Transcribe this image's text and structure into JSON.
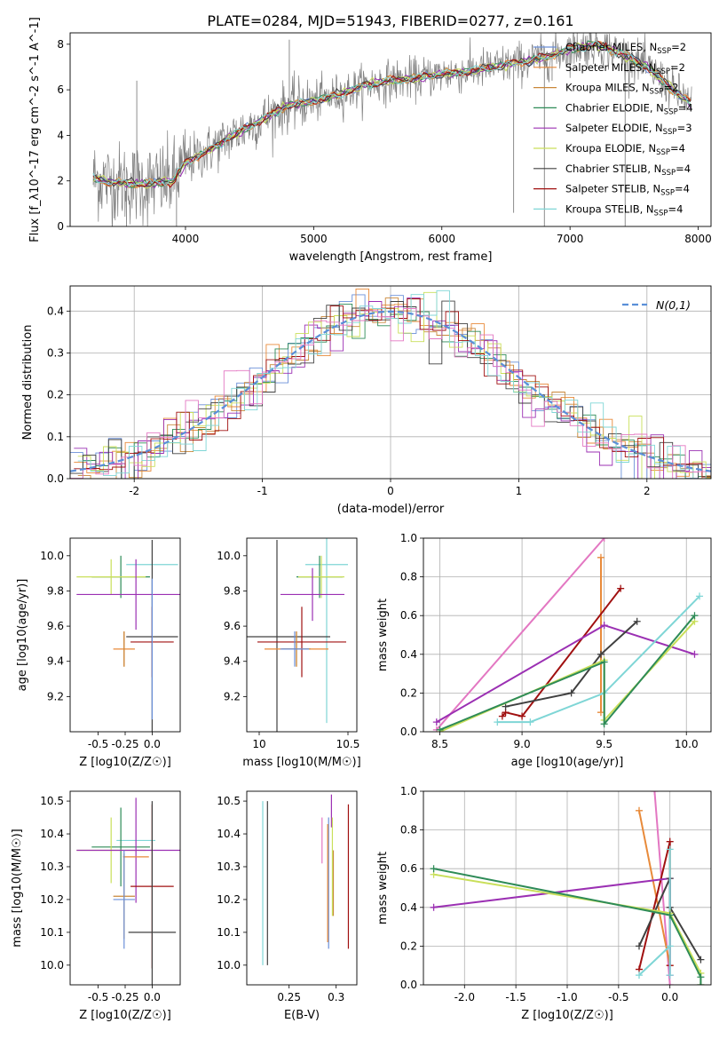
{
  "title": "PLATE=0284, MJD=51943, FIBERID=0277, z=0.161",
  "colors": {
    "cm": "#6a8fd8",
    "sm": "#e88a3a",
    "km": "#c9883a",
    "ce": "#2e8b57",
    "se": "#9b30b3",
    "ke": "#c9df5a",
    "cs": "#404040",
    "ss": "#a01010",
    "ks": "#7fd6d6",
    "pink": "#e377c2",
    "data": "#808080",
    "normal": "#5a8fd8"
  },
  "chart_data": [
    {
      "id": "spectrum",
      "type": "line",
      "xlabel": "wavelength [Angstrom, rest frame]",
      "ylabel": "Flux [f_λ10^-17 erg cm^-2 s^-1 A^-1]",
      "xlim": [
        3100,
        8100
      ],
      "ylim": [
        0,
        8.5
      ],
      "xticks": [
        4000,
        5000,
        6000,
        7000,
        8000
      ],
      "yticks": [
        0,
        2,
        4,
        6,
        8
      ],
      "continuum": {
        "x": [
          3280,
          3500,
          3700,
          3900,
          4000,
          4200,
          4400,
          4600,
          4800,
          5000,
          5200,
          5400,
          5600,
          5800,
          6000,
          6200,
          6400,
          6600,
          6800,
          7000,
          7200,
          7400,
          7600,
          7800,
          7950
        ],
        "y": [
          2.1,
          1.9,
          1.85,
          2.0,
          2.8,
          3.4,
          4.1,
          4.7,
          5.3,
          5.5,
          5.8,
          6.2,
          6.4,
          6.5,
          6.7,
          6.8,
          7.0,
          7.2,
          7.4,
          7.8,
          8.0,
          7.6,
          7.0,
          6.0,
          5.4
        ]
      },
      "legend": [
        {
          "key": "cm",
          "label": "Chabrier MILES, N",
          "sub": "SSP",
          "tail": "=2"
        },
        {
          "key": "sm",
          "label": "Salpeter MILES, N",
          "sub": "SSP",
          "tail": "=2"
        },
        {
          "key": "km",
          "label": "Kroupa MILES, N",
          "sub": "SSP",
          "tail": "=2"
        },
        {
          "key": "ce",
          "label": "Chabrier ELODIE, N",
          "sub": "SSP",
          "tail": "=4"
        },
        {
          "key": "se",
          "label": "Salpeter ELODIE, N",
          "sub": "SSP",
          "tail": "=3"
        },
        {
          "key": "ke",
          "label": "Kroupa ELODIE, N",
          "sub": "SSP",
          "tail": "=4"
        },
        {
          "key": "cs",
          "label": "Chabrier STELIB, N",
          "sub": "SSP",
          "tail": "=4"
        },
        {
          "key": "ss",
          "label": "Salpeter STELIB, N",
          "sub": "SSP",
          "tail": "=4"
        },
        {
          "key": "ks",
          "label": "Kroupa STELIB, N",
          "sub": "SSP",
          "tail": "=4"
        }
      ]
    },
    {
      "id": "residuals",
      "type": "histogram",
      "xlabel": "(data-model)/error",
      "ylabel": "Normed distribution",
      "xlim": [
        -2.5,
        2.5
      ],
      "ylim": [
        0,
        0.46
      ],
      "xticks": [
        -2,
        -1,
        0,
        1,
        2
      ],
      "yticks": [
        0.0,
        0.1,
        0.2,
        0.3,
        0.4
      ],
      "grid": true,
      "legend": "N(0,1)",
      "legend_position": "top-right",
      "bin_width": 0.1
    },
    {
      "id": "age-vs-z",
      "type": "errorbar",
      "xlabel": "Z [log10(Z/Z☉)]",
      "ylabel": "age  [log10(age/yr)]",
      "xlim": [
        -0.76,
        0.26
      ],
      "ylim": [
        9.0,
        10.1
      ],
      "xticks": [
        -0.5,
        -0.25,
        0.0
      ],
      "yticks": [
        9.2,
        9.4,
        9.6,
        9.8,
        10.0
      ],
      "points": [
        {
          "key": "ks",
          "x": 0.0,
          "y": 9.95,
          "xerr": 0.24,
          "yerr": 0.0
        },
        {
          "key": "ce",
          "x": -0.29,
          "y": 9.88,
          "xerr": 0.27,
          "yerr": 0.12
        },
        {
          "key": "ke",
          "x": -0.38,
          "y": 9.88,
          "xerr": 0.32,
          "yerr": 0.1
        },
        {
          "key": "se",
          "x": -0.15,
          "y": 9.78,
          "xerr": 0.55,
          "yerr": 0.2
        },
        {
          "key": "cs",
          "x": 0.0,
          "y": 9.54,
          "xerr": 0.24,
          "yerr": 0.55
        },
        {
          "key": "ss",
          "x": 0.0,
          "y": 9.51,
          "xerr": 0.2,
          "yerr": 0.2
        },
        {
          "key": "sm",
          "x": -0.26,
          "y": 9.47,
          "xerr": 0.1,
          "yerr": 0.1
        },
        {
          "key": "km",
          "x": -0.26,
          "y": 9.47,
          "xerr": 0.0,
          "yerr": 0.1
        },
        {
          "key": "cm",
          "x": 0.0,
          "y": 9.47,
          "xerr": 0.0,
          "yerr": 0.4
        }
      ]
    },
    {
      "id": "age-vs-mass",
      "type": "errorbar",
      "xlabel": "mass [log10(M/M☉)]",
      "ylabel": "",
      "xlim": [
        9.93,
        10.55
      ],
      "ylim": [
        9.0,
        10.1
      ],
      "xticks": [
        10.0,
        10.5
      ],
      "yticks": [
        9.2,
        9.4,
        9.6,
        9.8,
        10.0
      ],
      "points": [
        {
          "key": "ks",
          "x": 10.38,
          "y": 9.95,
          "xerr": 0.12,
          "yerr": 0.9
        },
        {
          "key": "ce",
          "x": 10.34,
          "y": 9.88,
          "xerr": 0.13,
          "yerr": 0.12
        },
        {
          "key": "ke",
          "x": 10.35,
          "y": 9.88,
          "xerr": 0.13,
          "yerr": 0.12
        },
        {
          "key": "se",
          "x": 10.3,
          "y": 9.78,
          "xerr": 0.18,
          "yerr": 0.15
        },
        {
          "key": "cs",
          "x": 10.1,
          "y": 9.54,
          "xerr": 0.3,
          "yerr": 0.55
        },
        {
          "key": "ss",
          "x": 10.24,
          "y": 9.51,
          "xerr": 0.25,
          "yerr": 0.2
        },
        {
          "key": "sm",
          "x": 10.21,
          "y": 9.47,
          "xerr": 0.18,
          "yerr": 0.1
        },
        {
          "key": "km",
          "x": 10.21,
          "y": 9.47,
          "xerr": 0.08,
          "yerr": 0.1
        },
        {
          "key": "cm",
          "x": 10.2,
          "y": 9.47,
          "xerr": 0.08,
          "yerr": 0.1
        }
      ]
    },
    {
      "id": "weight-vs-age",
      "type": "line",
      "xlabel": "age  [log10(age/yr)]",
      "ylabel": "mass weight",
      "xlim": [
        8.4,
        10.15
      ],
      "ylim": [
        0,
        1.0
      ],
      "xticks": [
        8.5,
        9.0,
        9.5,
        10.0
      ],
      "yticks": [
        0.0,
        0.2,
        0.4,
        0.6,
        0.8,
        1.0
      ],
      "grid": true,
      "series": [
        {
          "key": "pink",
          "x": [
            8.48,
            9.5
          ],
          "y": [
            0.01,
            1.0
          ]
        },
        {
          "key": "sm",
          "x": [
            9.48,
            9.48
          ],
          "y": [
            0.9,
            0.1
          ]
        },
        {
          "key": "ss",
          "x": [
            8.88,
            8.9,
            9.0,
            9.6
          ],
          "y": [
            0.08,
            0.1,
            0.08,
            0.74
          ]
        },
        {
          "key": "se",
          "x": [
            8.48,
            9.5,
            10.05
          ],
          "y": [
            0.05,
            0.55,
            0.4
          ]
        },
        {
          "key": "cs",
          "x": [
            8.9,
            9.3,
            9.48,
            9.7
          ],
          "y": [
            0.13,
            0.2,
            0.4,
            0.57
          ]
        },
        {
          "key": "ks",
          "x": [
            8.85,
            9.05,
            9.5,
            10.08
          ],
          "y": [
            0.05,
            0.05,
            0.2,
            0.7
          ]
        },
        {
          "key": "ke",
          "x": [
            8.5,
            9.5,
            9.5,
            10.05
          ],
          "y": [
            0.0,
            0.37,
            0.06,
            0.57
          ]
        },
        {
          "key": "ce",
          "x": [
            8.5,
            9.5,
            9.5,
            10.05
          ],
          "y": [
            0.01,
            0.36,
            0.04,
            0.6
          ]
        }
      ]
    },
    {
      "id": "mass-vs-z",
      "type": "errorbar",
      "xlabel": "Z [log10(Z/Z☉)]",
      "ylabel": "mass [log10(M/M☉)]",
      "xlim": [
        -0.76,
        0.26
      ],
      "ylim": [
        9.94,
        10.53
      ],
      "xticks": [
        -0.5,
        -0.25,
        0.0
      ],
      "yticks": [
        10.0,
        10.1,
        10.2,
        10.3,
        10.4,
        10.5
      ],
      "points": [
        {
          "key": "ks",
          "x": -0.15,
          "y": 10.38,
          "xerr": 0.18,
          "yerr": 0.0
        },
        {
          "key": "ce",
          "x": -0.29,
          "y": 10.36,
          "xerr": 0.27,
          "yerr": 0.12
        },
        {
          "key": "ke",
          "x": -0.38,
          "y": 10.35,
          "xerr": 0.32,
          "yerr": 0.1
        },
        {
          "key": "se",
          "x": -0.15,
          "y": 10.35,
          "xerr": 0.55,
          "yerr": 0.16
        },
        {
          "key": "sm",
          "x": -0.15,
          "y": 10.33,
          "xerr": 0.12,
          "yerr": 0.0
        },
        {
          "key": "ss",
          "x": 0.0,
          "y": 10.24,
          "xerr": 0.2,
          "yerr": 0.25
        },
        {
          "key": "km",
          "x": -0.26,
          "y": 10.21,
          "xerr": 0.1,
          "yerr": 0.13
        },
        {
          "key": "cm",
          "x": -0.26,
          "y": 10.2,
          "xerr": 0.1,
          "yerr": 0.15
        },
        {
          "key": "cs",
          "x": 0.0,
          "y": 10.1,
          "xerr": 0.22,
          "yerr": 0.4
        }
      ]
    },
    {
      "id": "mass-vs-ebv",
      "type": "errorbar",
      "xlabel": "E(B-V)",
      "ylabel": "",
      "xlim": [
        0.205,
        0.322
      ],
      "ylim": [
        9.94,
        10.53
      ],
      "xticks": [
        0.25,
        0.3
      ],
      "yticks": [
        10.0,
        10.1,
        10.2,
        10.3,
        10.4,
        10.5
      ],
      "points": [
        {
          "key": "ks",
          "x": 0.222,
          "y": 10.25,
          "xerr": 0.0,
          "yerr": 0.25
        },
        {
          "key": "cs",
          "x": 0.227,
          "y": 10.25,
          "xerr": 0.0,
          "yerr": 0.25
        },
        {
          "key": "pink",
          "x": 0.285,
          "y": 10.38,
          "xerr": 0.0,
          "yerr": 0.07
        },
        {
          "key": "cm",
          "x": 0.292,
          "y": 10.25,
          "xerr": 0.0,
          "yerr": 0.2
        },
        {
          "key": "sm",
          "x": 0.291,
          "y": 10.25,
          "xerr": 0.0,
          "yerr": 0.18
        },
        {
          "key": "km",
          "x": 0.297,
          "y": 10.25,
          "xerr": 0.0,
          "yerr": 0.1
        },
        {
          "key": "se",
          "x": 0.295,
          "y": 10.47,
          "xerr": 0.0,
          "yerr": 0.05
        },
        {
          "key": "ke",
          "x": 0.296,
          "y": 10.3,
          "xerr": 0.0,
          "yerr": 0.15
        },
        {
          "key": "ss",
          "x": 0.313,
          "y": 10.27,
          "xerr": 0.0,
          "yerr": 0.22
        }
      ]
    },
    {
      "id": "weight-vs-z",
      "type": "line",
      "xlabel": "Z [log10(Z/Z☉)]",
      "ylabel": "mass weight",
      "xlim": [
        -2.4,
        0.4
      ],
      "ylim": [
        0,
        1.0
      ],
      "xticks": [
        -2.0,
        -1.5,
        -1.0,
        -0.5,
        0.0
      ],
      "yticks": [
        0.0,
        0.2,
        0.4,
        0.6,
        0.8,
        1.0
      ],
      "grid": true,
      "series": [
        {
          "key": "pink",
          "x": [
            -0.15,
            0.0
          ],
          "y": [
            1.0,
            0.0
          ]
        },
        {
          "key": "sm",
          "x": [
            -0.3,
            0.0
          ],
          "y": [
            0.9,
            0.1
          ]
        },
        {
          "key": "ss",
          "x": [
            -0.3,
            0.0,
            0.0
          ],
          "y": [
            0.08,
            0.74,
            0.1
          ]
        },
        {
          "key": "se",
          "x": [
            -2.3,
            0.0,
            0.0
          ],
          "y": [
            0.4,
            0.55,
            0.05
          ]
        },
        {
          "key": "cs",
          "x": [
            -0.3,
            0.0,
            0.0,
            0.3
          ],
          "y": [
            0.2,
            0.55,
            0.4,
            0.13
          ]
        },
        {
          "key": "ks",
          "x": [
            -0.3,
            0.0,
            0.0,
            0.0
          ],
          "y": [
            0.05,
            0.2,
            0.7,
            0.05
          ]
        },
        {
          "key": "ke",
          "x": [
            -2.3,
            0.0,
            0.3,
            0.3
          ],
          "y": [
            0.57,
            0.37,
            0.06,
            0.0
          ]
        },
        {
          "key": "ce",
          "x": [
            -2.3,
            0.0,
            0.3,
            0.3
          ],
          "y": [
            0.6,
            0.36,
            0.04,
            0.0
          ]
        }
      ]
    }
  ]
}
